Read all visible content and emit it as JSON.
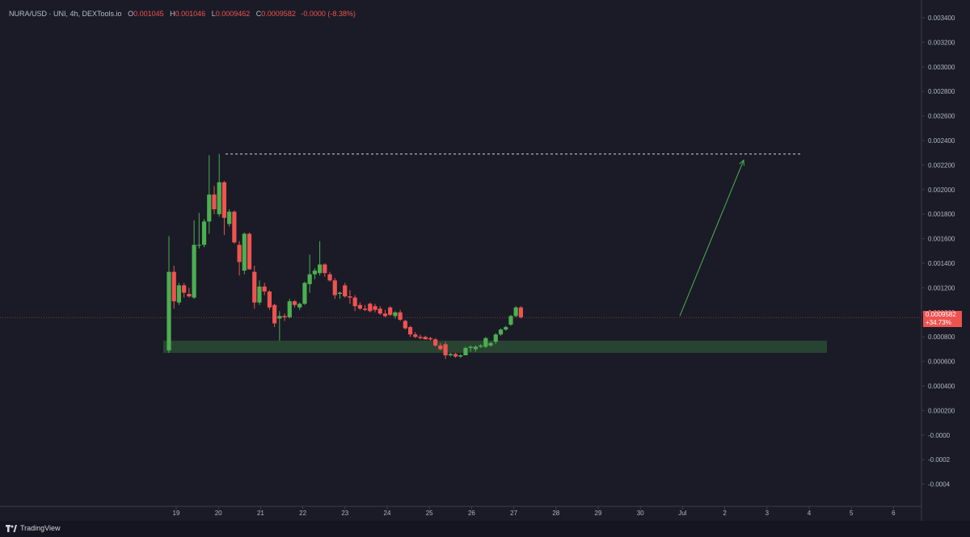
{
  "header": {
    "symbol": "NURA/USD · UNI, 4h, DEXTools.io",
    "open_label": "O",
    "open": "0.001045",
    "high_label": "H",
    "high": "0.001046",
    "low_label": "L",
    "low": "0.0009462",
    "close_label": "C",
    "close": "0.0009582",
    "change": "-0.0000 (-8.38%)"
  },
  "price_tag": {
    "price": "0.0009582",
    "change_pct": "+34.73%"
  },
  "footer": {
    "brand": "TradingView"
  },
  "colors": {
    "background": "#1a1b27",
    "up": "#4caf50",
    "down": "#ef5350",
    "support_zone": "#2d4a35",
    "dash_line": "#d1d4dc",
    "arrow": "#4caf50"
  },
  "chart_data": {
    "type": "candlestick",
    "y_ticks": [
      "0.003400",
      "0.003200",
      "0.003000",
      "0.002800",
      "0.002600",
      "0.002400",
      "0.002200",
      "0.002000",
      "0.001800",
      "0.001600",
      "0.001400",
      "0.001200",
      "0.001000",
      "0.000800",
      "0.000600",
      "0.000400",
      "0.000200",
      "-0.0000",
      "-0.0002",
      "-0.0004"
    ],
    "x_ticks": [
      "19",
      "20",
      "21",
      "22",
      "23",
      "24",
      "25",
      "26",
      "27",
      "28",
      "29",
      "30",
      "Jul",
      "2",
      "3",
      "4",
      "5",
      "6"
    ],
    "ylim": [
      -0.0005,
      0.00345
    ],
    "candles": [
      {
        "o": 0.00069,
        "h": 0.00162,
        "l": 0.00067,
        "c": 0.00133
      },
      {
        "o": 0.00133,
        "h": 0.00138,
        "l": 0.00103,
        "c": 0.00109
      },
      {
        "o": 0.00108,
        "h": 0.00124,
        "l": 0.00106,
        "c": 0.00122
      },
      {
        "o": 0.00122,
        "h": 0.00124,
        "l": 0.00112,
        "c": 0.00116
      },
      {
        "o": 0.00115,
        "h": 0.0012,
        "l": 0.00112,
        "c": 0.00113
      },
      {
        "o": 0.00112,
        "h": 0.00175,
        "l": 0.00111,
        "c": 0.00155
      },
      {
        "o": 0.00155,
        "h": 0.00181,
        "l": 0.00152,
        "c": 0.00155
      },
      {
        "o": 0.00155,
        "h": 0.00176,
        "l": 0.00153,
        "c": 0.00174
      },
      {
        "o": 0.00174,
        "h": 0.00228,
        "l": 0.00164,
        "c": 0.00196
      },
      {
        "o": 0.00196,
        "h": 0.00203,
        "l": 0.0018,
        "c": 0.00184
      },
      {
        "o": 0.0018,
        "h": 0.00229,
        "l": 0.00178,
        "c": 0.00206
      },
      {
        "o": 0.00206,
        "h": 0.00207,
        "l": 0.00163,
        "c": 0.00177
      },
      {
        "o": 0.00172,
        "h": 0.00184,
        "l": 0.0017,
        "c": 0.00182
      },
      {
        "o": 0.00182,
        "h": 0.00183,
        "l": 0.00156,
        "c": 0.00157
      },
      {
        "o": 0.00155,
        "h": 0.00158,
        "l": 0.0013,
        "c": 0.00141
      },
      {
        "o": 0.00134,
        "h": 0.00165,
        "l": 0.00131,
        "c": 0.00164
      },
      {
        "o": 0.00164,
        "h": 0.00165,
        "l": 0.00136,
        "c": 0.00135
      },
      {
        "o": 0.00133,
        "h": 0.00138,
        "l": 0.00103,
        "c": 0.00108
      },
      {
        "o": 0.00108,
        "h": 0.00126,
        "l": 0.00106,
        "c": 0.00121
      },
      {
        "o": 0.00121,
        "h": 0.00124,
        "l": 0.00114,
        "c": 0.00117
      },
      {
        "o": 0.00117,
        "h": 0.00118,
        "l": 0.00102,
        "c": 0.00104
      },
      {
        "o": 0.00106,
        "h": 0.00107,
        "l": 0.00088,
        "c": 0.00091
      },
      {
        "o": 0.00095,
        "h": 0.00101,
        "l": 0.00077,
        "c": 0.00097
      },
      {
        "o": 0.00097,
        "h": 0.00099,
        "l": 0.00093,
        "c": 0.00096
      },
      {
        "o": 0.00096,
        "h": 0.00111,
        "l": 0.00095,
        "c": 0.00109
      },
      {
        "o": 0.00109,
        "h": 0.0011,
        "l": 0.00104,
        "c": 0.00106
      },
      {
        "o": 0.00104,
        "h": 0.00108,
        "l": 0.00102,
        "c": 0.00107
      },
      {
        "o": 0.00107,
        "h": 0.00125,
        "l": 0.00106,
        "c": 0.00124
      },
      {
        "o": 0.00123,
        "h": 0.00147,
        "l": 0.00116,
        "c": 0.00131
      },
      {
        "o": 0.00131,
        "h": 0.00136,
        "l": 0.00127,
        "c": 0.00134
      },
      {
        "o": 0.00132,
        "h": 0.00158,
        "l": 0.0013,
        "c": 0.00139
      },
      {
        "o": 0.00139,
        "h": 0.0014,
        "l": 0.00129,
        "c": 0.00132
      },
      {
        "o": 0.00131,
        "h": 0.00133,
        "l": 0.00125,
        "c": 0.00126
      },
      {
        "o": 0.00126,
        "h": 0.00128,
        "l": 0.00111,
        "c": 0.00114
      },
      {
        "o": 0.00115,
        "h": 0.00117,
        "l": 0.00111,
        "c": 0.00116
      },
      {
        "o": 0.00122,
        "h": 0.00124,
        "l": 0.00112,
        "c": 0.00113
      },
      {
        "o": 0.00113,
        "h": 0.00118,
        "l": 0.00107,
        "c": 0.00112
      },
      {
        "o": 0.00112,
        "h": 0.00114,
        "l": 0.00101,
        "c": 0.00105
      },
      {
        "o": 0.00106,
        "h": 0.00108,
        "l": 0.00102,
        "c": 0.00103
      },
      {
        "o": 0.00103,
        "h": 0.00106,
        "l": 0.00101,
        "c": 0.00102
      },
      {
        "o": 0.00107,
        "h": 0.00108,
        "l": 0.001,
        "c": 0.00101
      },
      {
        "o": 0.00105,
        "h": 0.00107,
        "l": 0.001,
        "c": 0.00102
      },
      {
        "o": 0.00103,
        "h": 0.00105,
        "l": 0.00098,
        "c": 0.00099
      },
      {
        "o": 0.00099,
        "h": 0.00102,
        "l": 0.00096,
        "c": 0.00097
      },
      {
        "o": 0.00104,
        "h": 0.00105,
        "l": 0.00097,
        "c": 0.00098
      },
      {
        "o": 0.00097,
        "h": 0.00101,
        "l": 0.00095,
        "c": 0.001
      },
      {
        "o": 0.001,
        "h": 0.00102,
        "l": 0.00093,
        "c": 0.00094
      },
      {
        "o": 0.00093,
        "h": 0.00094,
        "l": 0.00086,
        "c": 0.00087
      },
      {
        "o": 0.00088,
        "h": 0.00089,
        "l": 0.0008,
        "c": 0.00082
      },
      {
        "o": 0.00082,
        "h": 0.00084,
        "l": 0.00079,
        "c": 0.0008
      },
      {
        "o": 0.0008,
        "h": 0.00082,
        "l": 0.00078,
        "c": 0.00079
      },
      {
        "o": 0.0008,
        "h": 0.00081,
        "l": 0.00078,
        "c": 0.00078
      },
      {
        "o": 0.00079,
        "h": 0.0008,
        "l": 0.00077,
        "c": 0.00078
      },
      {
        "o": 0.00078,
        "h": 0.00079,
        "l": 0.00072,
        "c": 0.00073
      },
      {
        "o": 0.00073,
        "h": 0.00075,
        "l": 0.00069,
        "c": 0.0007
      },
      {
        "o": 0.00074,
        "h": 0.00076,
        "l": 0.00062,
        "c": 0.00065
      },
      {
        "o": 0.00065,
        "h": 0.00067,
        "l": 0.00064,
        "c": 0.00066
      },
      {
        "o": 0.00066,
        "h": 0.00067,
        "l": 0.00063,
        "c": 0.00064
      },
      {
        "o": 0.00064,
        "h": 0.00066,
        "l": 0.00063,
        "c": 0.00065
      },
      {
        "o": 0.00065,
        "h": 0.00072,
        "l": 0.00065,
        "c": 0.00071
      },
      {
        "o": 0.00071,
        "h": 0.00073,
        "l": 0.00068,
        "c": 0.00072
      },
      {
        "o": 0.0007,
        "h": 0.00073,
        "l": 0.00068,
        "c": 0.00072
      },
      {
        "o": 0.00072,
        "h": 0.00074,
        "l": 0.00071,
        "c": 0.00073
      },
      {
        "o": 0.00072,
        "h": 0.0008,
        "l": 0.00071,
        "c": 0.00079
      },
      {
        "o": 0.00073,
        "h": 0.00076,
        "l": 0.00072,
        "c": 0.00075
      },
      {
        "o": 0.00076,
        "h": 0.00083,
        "l": 0.00074,
        "c": 0.00082
      },
      {
        "o": 0.00082,
        "h": 0.00087,
        "l": 0.00081,
        "c": 0.00086
      },
      {
        "o": 0.00086,
        "h": 0.00089,
        "l": 0.00085,
        "c": 0.00088
      },
      {
        "o": 0.0009,
        "h": 0.00098,
        "l": 0.00089,
        "c": 0.00097
      },
      {
        "o": 0.00097,
        "h": 0.00105,
        "l": 0.00096,
        "c": 0.00104
      },
      {
        "o": 0.00104,
        "h": 0.00105,
        "l": 0.00095,
        "c": 0.00096
      }
    ],
    "current_price": 0.0009582,
    "resistance_level": 0.00229,
    "support_zone": [
      0.00067,
      0.00077
    ],
    "arrow": {
      "from": [
        0.00097
      ],
      "to": [
        0.00224
      ]
    }
  }
}
